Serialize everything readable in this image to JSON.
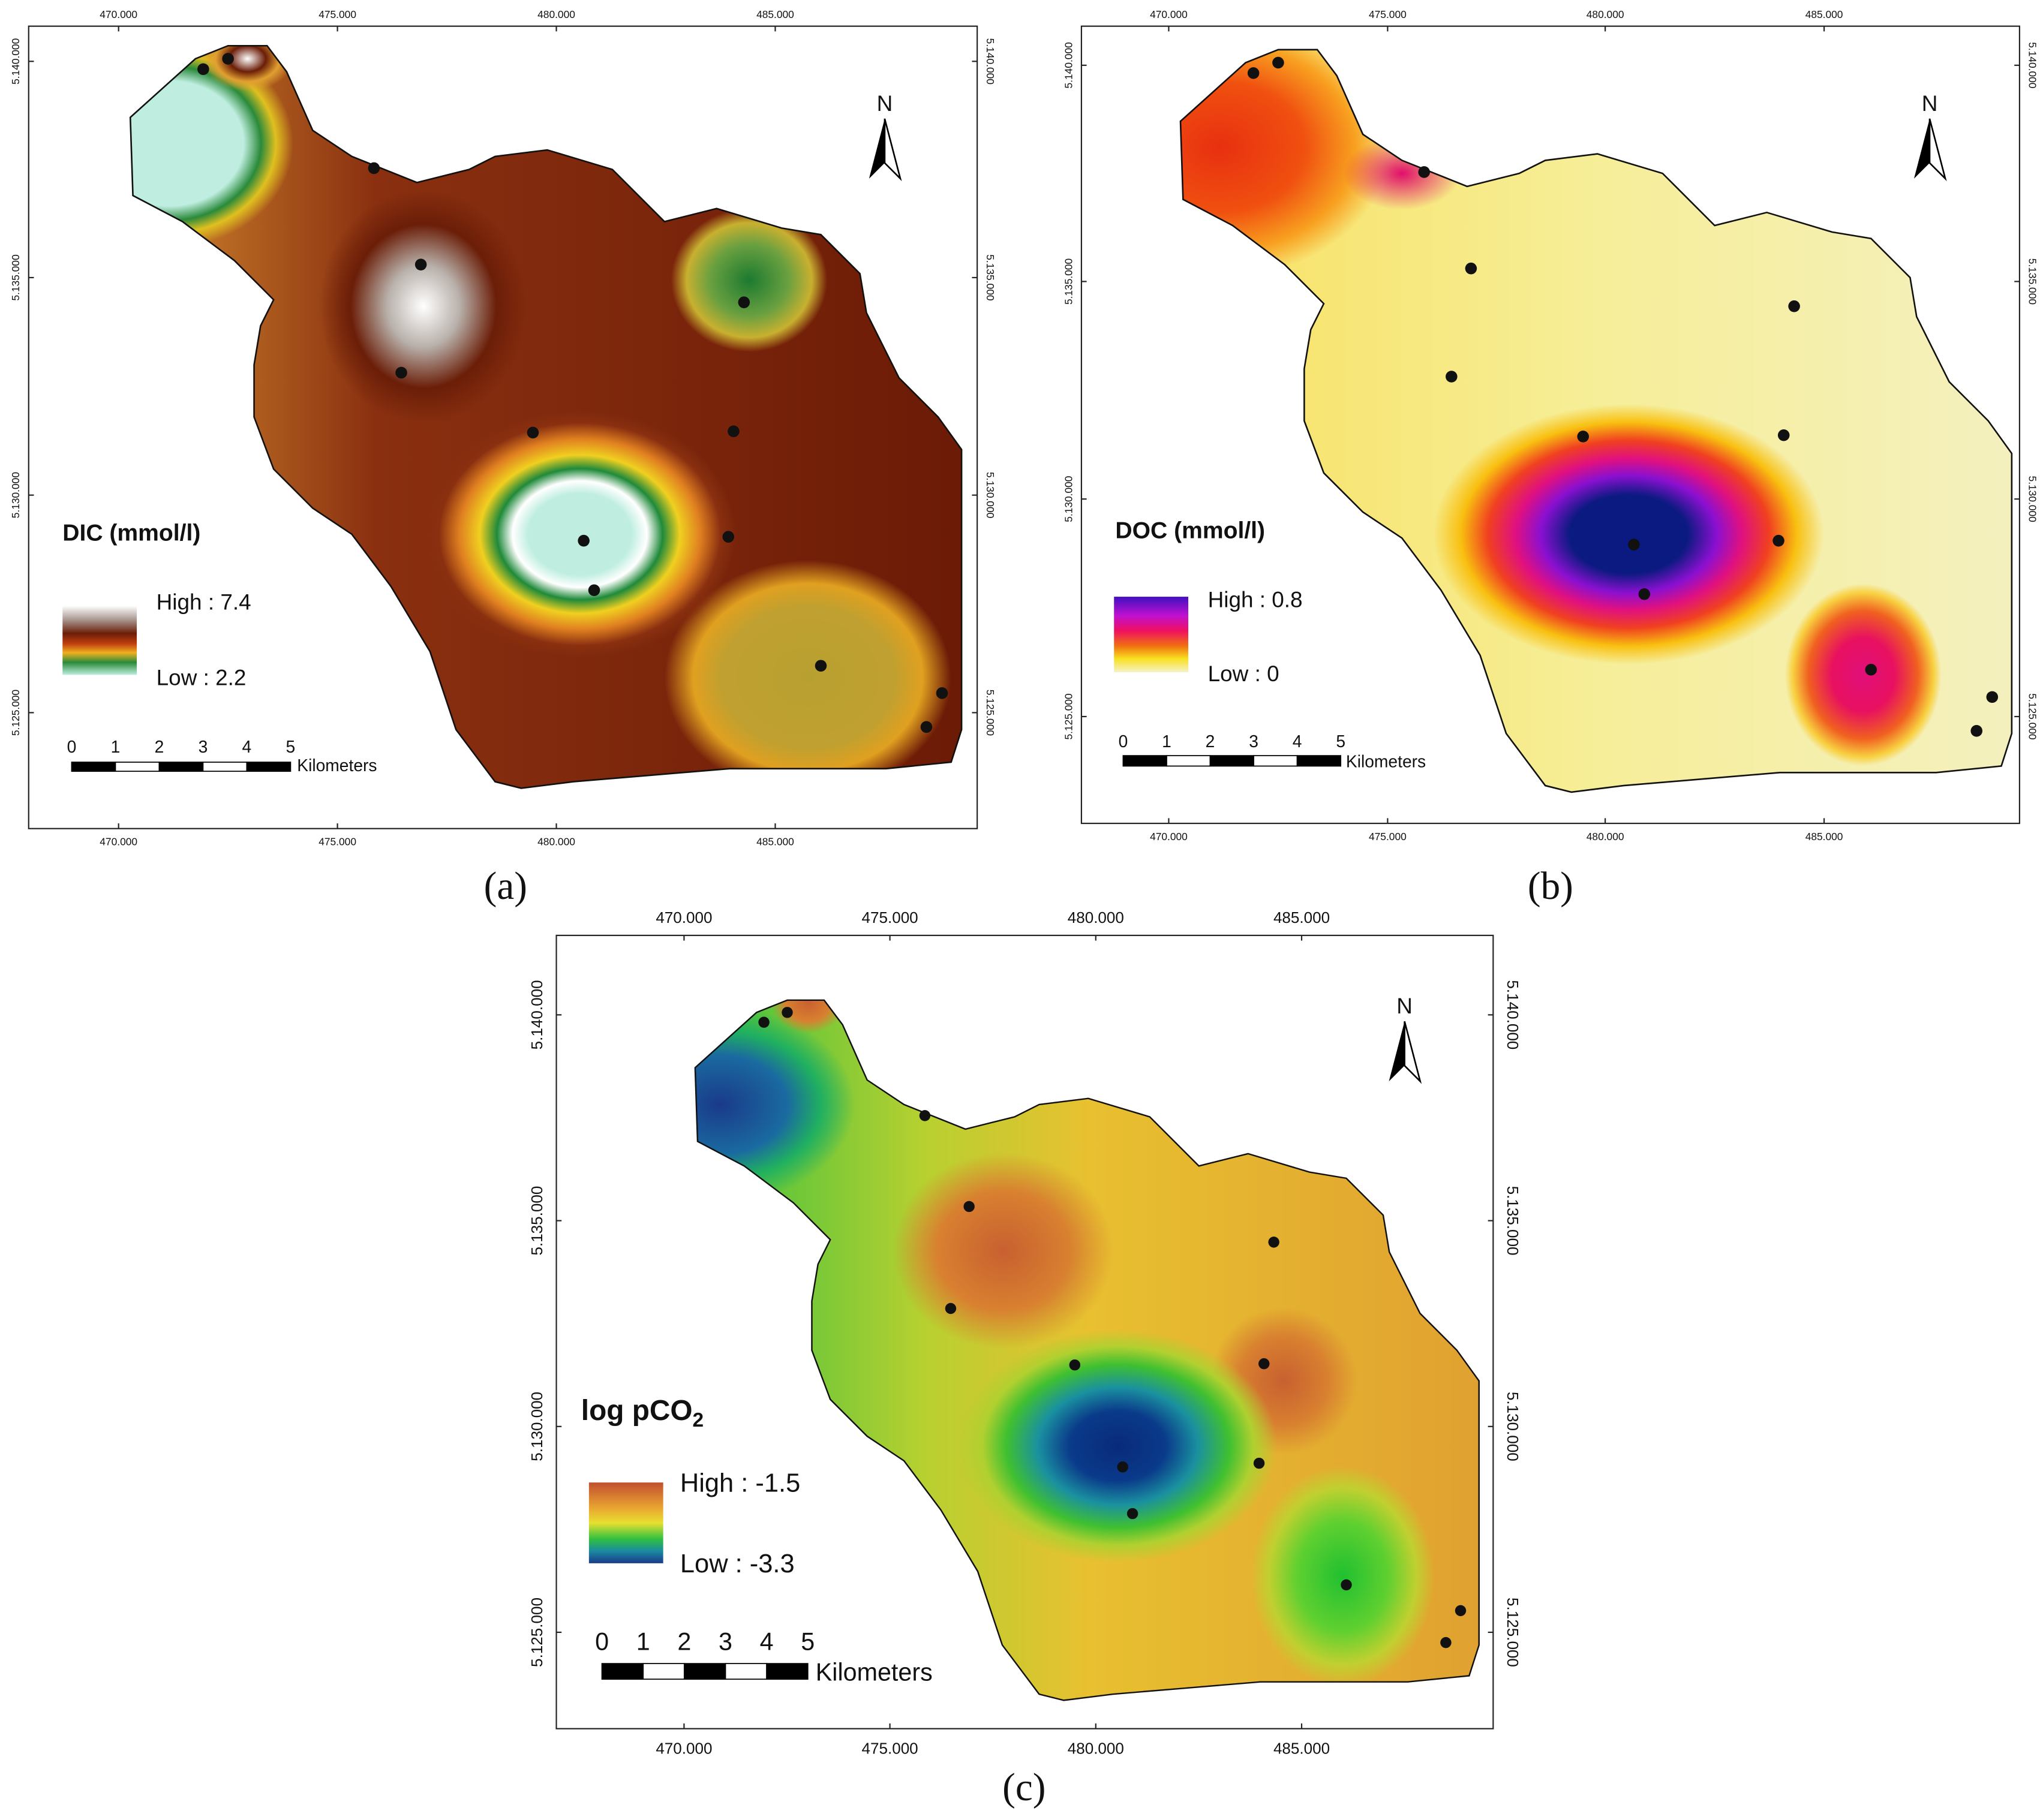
{
  "panels": [
    {
      "label": "(a)",
      "legend": {
        "title": "DIC (mmol/l)",
        "high": "High : 7.4",
        "low": "Low : 2.2"
      }
    },
    {
      "label": "(b)",
      "legend": {
        "title": "DOC (mmol/l)",
        "high": "High : 0.8",
        "low": "Low : 0"
      }
    },
    {
      "label": "(c)",
      "legend": {
        "title": "log pCO",
        "title_sub": "2",
        "high": "High : -1.5",
        "low": "Low : -3.3"
      }
    }
  ],
  "x_ticks": [
    "470.000",
    "475.000",
    "480.000",
    "485.000"
  ],
  "y_ticks": [
    "5.125.000",
    "5.130.000",
    "5.135.000",
    "5.140.000"
  ],
  "scale_bar": {
    "labels": [
      "0",
      "1",
      "2",
      "3",
      "4",
      "5"
    ],
    "unit": "Kilometers"
  },
  "north": "N"
}
